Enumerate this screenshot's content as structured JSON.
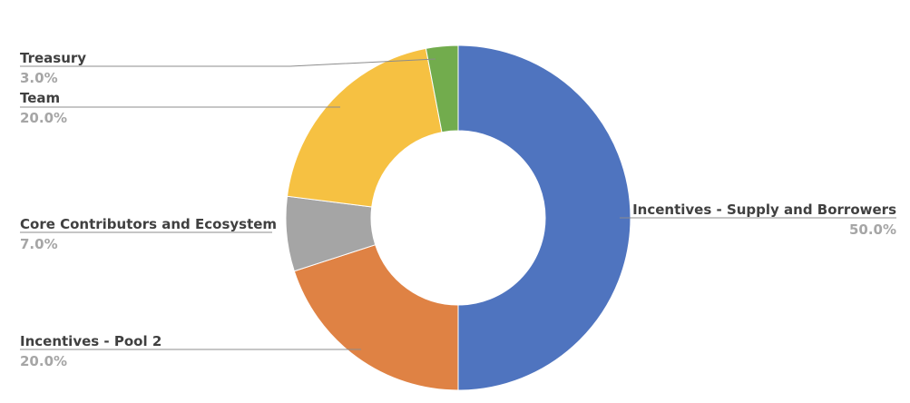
{
  "chart_data": {
    "type": "pie",
    "style": "donut",
    "title": "",
    "legend": "none",
    "slices": [
      {
        "label": "Incentives - Supply and Borrowers",
        "value": 50.0,
        "percent_label": "50.0%",
        "color": "#4f74bf"
      },
      {
        "label": "Incentives - Pool 2",
        "value": 20.0,
        "percent_label": "20.0%",
        "color": "#df8244"
      },
      {
        "label": "Core Contributors and Ecosystem",
        "value": 7.0,
        "percent_label": "7.0%",
        "color": "#a5a5a5"
      },
      {
        "label": "Team",
        "value": 20.0,
        "percent_label": "20.0%",
        "color": "#f6c142"
      },
      {
        "label": "Treasury",
        "value": 3.0,
        "percent_label": "3.0%",
        "color": "#72ac4d"
      }
    ]
  }
}
